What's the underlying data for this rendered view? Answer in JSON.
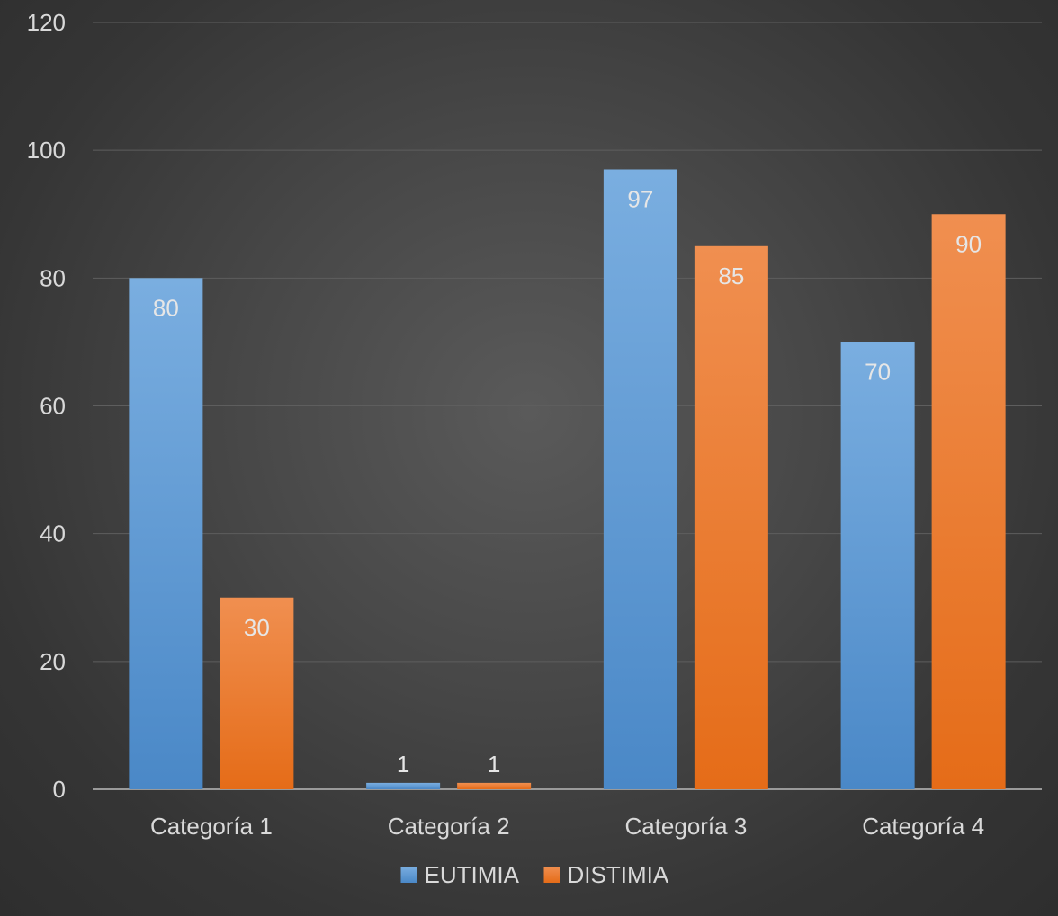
{
  "chart_data": {
    "type": "bar",
    "categories": [
      "Categoría 1",
      "Categoría 2",
      "Categoría 3",
      "Categoría 4"
    ],
    "series": [
      {
        "name": "EUTIMIA",
        "values": [
          80,
          1,
          97,
          70
        ],
        "color": "#5b9bd5"
      },
      {
        "name": "DISTIMIA",
        "values": [
          30,
          1,
          85,
          90
        ],
        "color": "#ed7d31"
      }
    ],
    "ylim": [
      0,
      120
    ],
    "yticks": [
      0,
      20,
      40,
      60,
      80,
      100,
      120
    ],
    "grid": true,
    "legend_position": "bottom",
    "data_labels": true
  }
}
